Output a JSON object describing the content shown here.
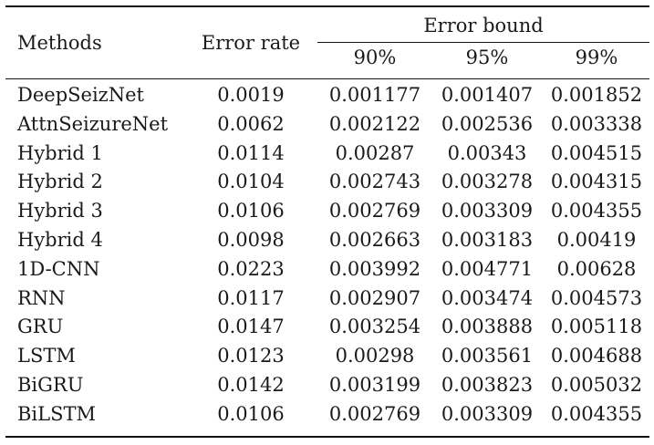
{
  "table": {
    "header": {
      "methods": "Methods",
      "error_rate": "Error rate",
      "error_bound": "Error bound",
      "sub": [
        "90%",
        "95%",
        "99%"
      ]
    },
    "rows": [
      {
        "method": "DeepSeizNet",
        "error_rate": "0.0019",
        "b90": "0.001177",
        "b95": "0.001407",
        "b99": "0.001852"
      },
      {
        "method": "AttnSeizureNet",
        "error_rate": "0.0062",
        "b90": "0.002122",
        "b95": "0.002536",
        "b99": "0.003338"
      },
      {
        "method": "Hybrid 1",
        "error_rate": "0.0114",
        "b90": "0.00287",
        "b95": "0.00343",
        "b99": "0.004515"
      },
      {
        "method": "Hybrid 2",
        "error_rate": "0.0104",
        "b90": "0.002743",
        "b95": "0.003278",
        "b99": "0.004315"
      },
      {
        "method": "Hybrid 3",
        "error_rate": "0.0106",
        "b90": "0.002769",
        "b95": "0.003309",
        "b99": "0.004355"
      },
      {
        "method": "Hybrid 4",
        "error_rate": "0.0098",
        "b90": "0.002663",
        "b95": "0.003183",
        "b99": "0.00419"
      },
      {
        "method": "1D-CNN",
        "error_rate": "0.0223",
        "b90": "0.003992",
        "b95": "0.004771",
        "b99": "0.00628"
      },
      {
        "method": "RNN",
        "error_rate": "0.0117",
        "b90": "0.002907",
        "b95": "0.003474",
        "b99": "0.004573"
      },
      {
        "method": "GRU",
        "error_rate": "0.0147",
        "b90": "0.003254",
        "b95": "0.003888",
        "b99": "0.005118"
      },
      {
        "method": "LSTM",
        "error_rate": "0.0123",
        "b90": "0.00298",
        "b95": "0.003561",
        "b99": "0.004688"
      },
      {
        "method": "BiGRU",
        "error_rate": "0.0142",
        "b90": "0.003199",
        "b95": "0.003823",
        "b99": "0.005032"
      },
      {
        "method": "BiLSTM",
        "error_rate": "0.0106",
        "b90": "0.002769",
        "b95": "0.003309",
        "b99": "0.004355"
      }
    ]
  }
}
